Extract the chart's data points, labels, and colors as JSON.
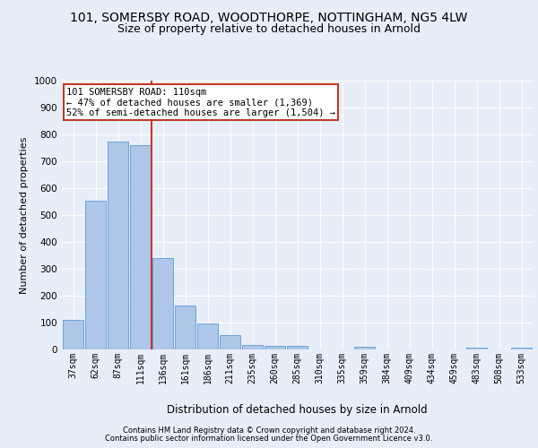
{
  "title1": "101, SOMERSBY ROAD, WOODTHORPE, NOTTINGHAM, NG5 4LW",
  "title2": "Size of property relative to detached houses in Arnold",
  "xlabel": "Distribution of detached houses by size in Arnold",
  "ylabel": "Number of detached properties",
  "categories": [
    "37sqm",
    "62sqm",
    "87sqm",
    "111sqm",
    "136sqm",
    "161sqm",
    "186sqm",
    "211sqm",
    "235sqm",
    "260sqm",
    "285sqm",
    "310sqm",
    "335sqm",
    "359sqm",
    "384sqm",
    "409sqm",
    "434sqm",
    "459sqm",
    "483sqm",
    "508sqm",
    "533sqm"
  ],
  "values": [
    110,
    555,
    775,
    760,
    340,
    165,
    97,
    53,
    18,
    13,
    13,
    0,
    0,
    11,
    0,
    0,
    0,
    0,
    8,
    0,
    8
  ],
  "bar_color": "#aec6e8",
  "bar_edgecolor": "#5b9bd5",
  "vline_color": "#c0392b",
  "vline_pos": 3.5,
  "annotation_text": "101 SOMERSBY ROAD: 110sqm\n← 47% of detached houses are smaller (1,369)\n52% of semi-detached houses are larger (1,504) →",
  "annotation_box_edgecolor": "#c0392b",
  "annotation_box_facecolor": "#ffffff",
  "footer1": "Contains HM Land Registry data © Crown copyright and database right 2024.",
  "footer2": "Contains public sector information licensed under the Open Government Licence v3.0.",
  "ylim": [
    0,
    1000
  ],
  "yticks": [
    0,
    100,
    200,
    300,
    400,
    500,
    600,
    700,
    800,
    900,
    1000
  ],
  "bg_color": "#e8eef7",
  "grid_color": "#ffffff",
  "title1_fontsize": 10,
  "title2_fontsize": 9,
  "annot_fontsize": 7.5,
  "ylabel_fontsize": 8,
  "xlabel_fontsize": 8.5,
  "tick_fontsize": 7,
  "footer_fontsize": 6
}
